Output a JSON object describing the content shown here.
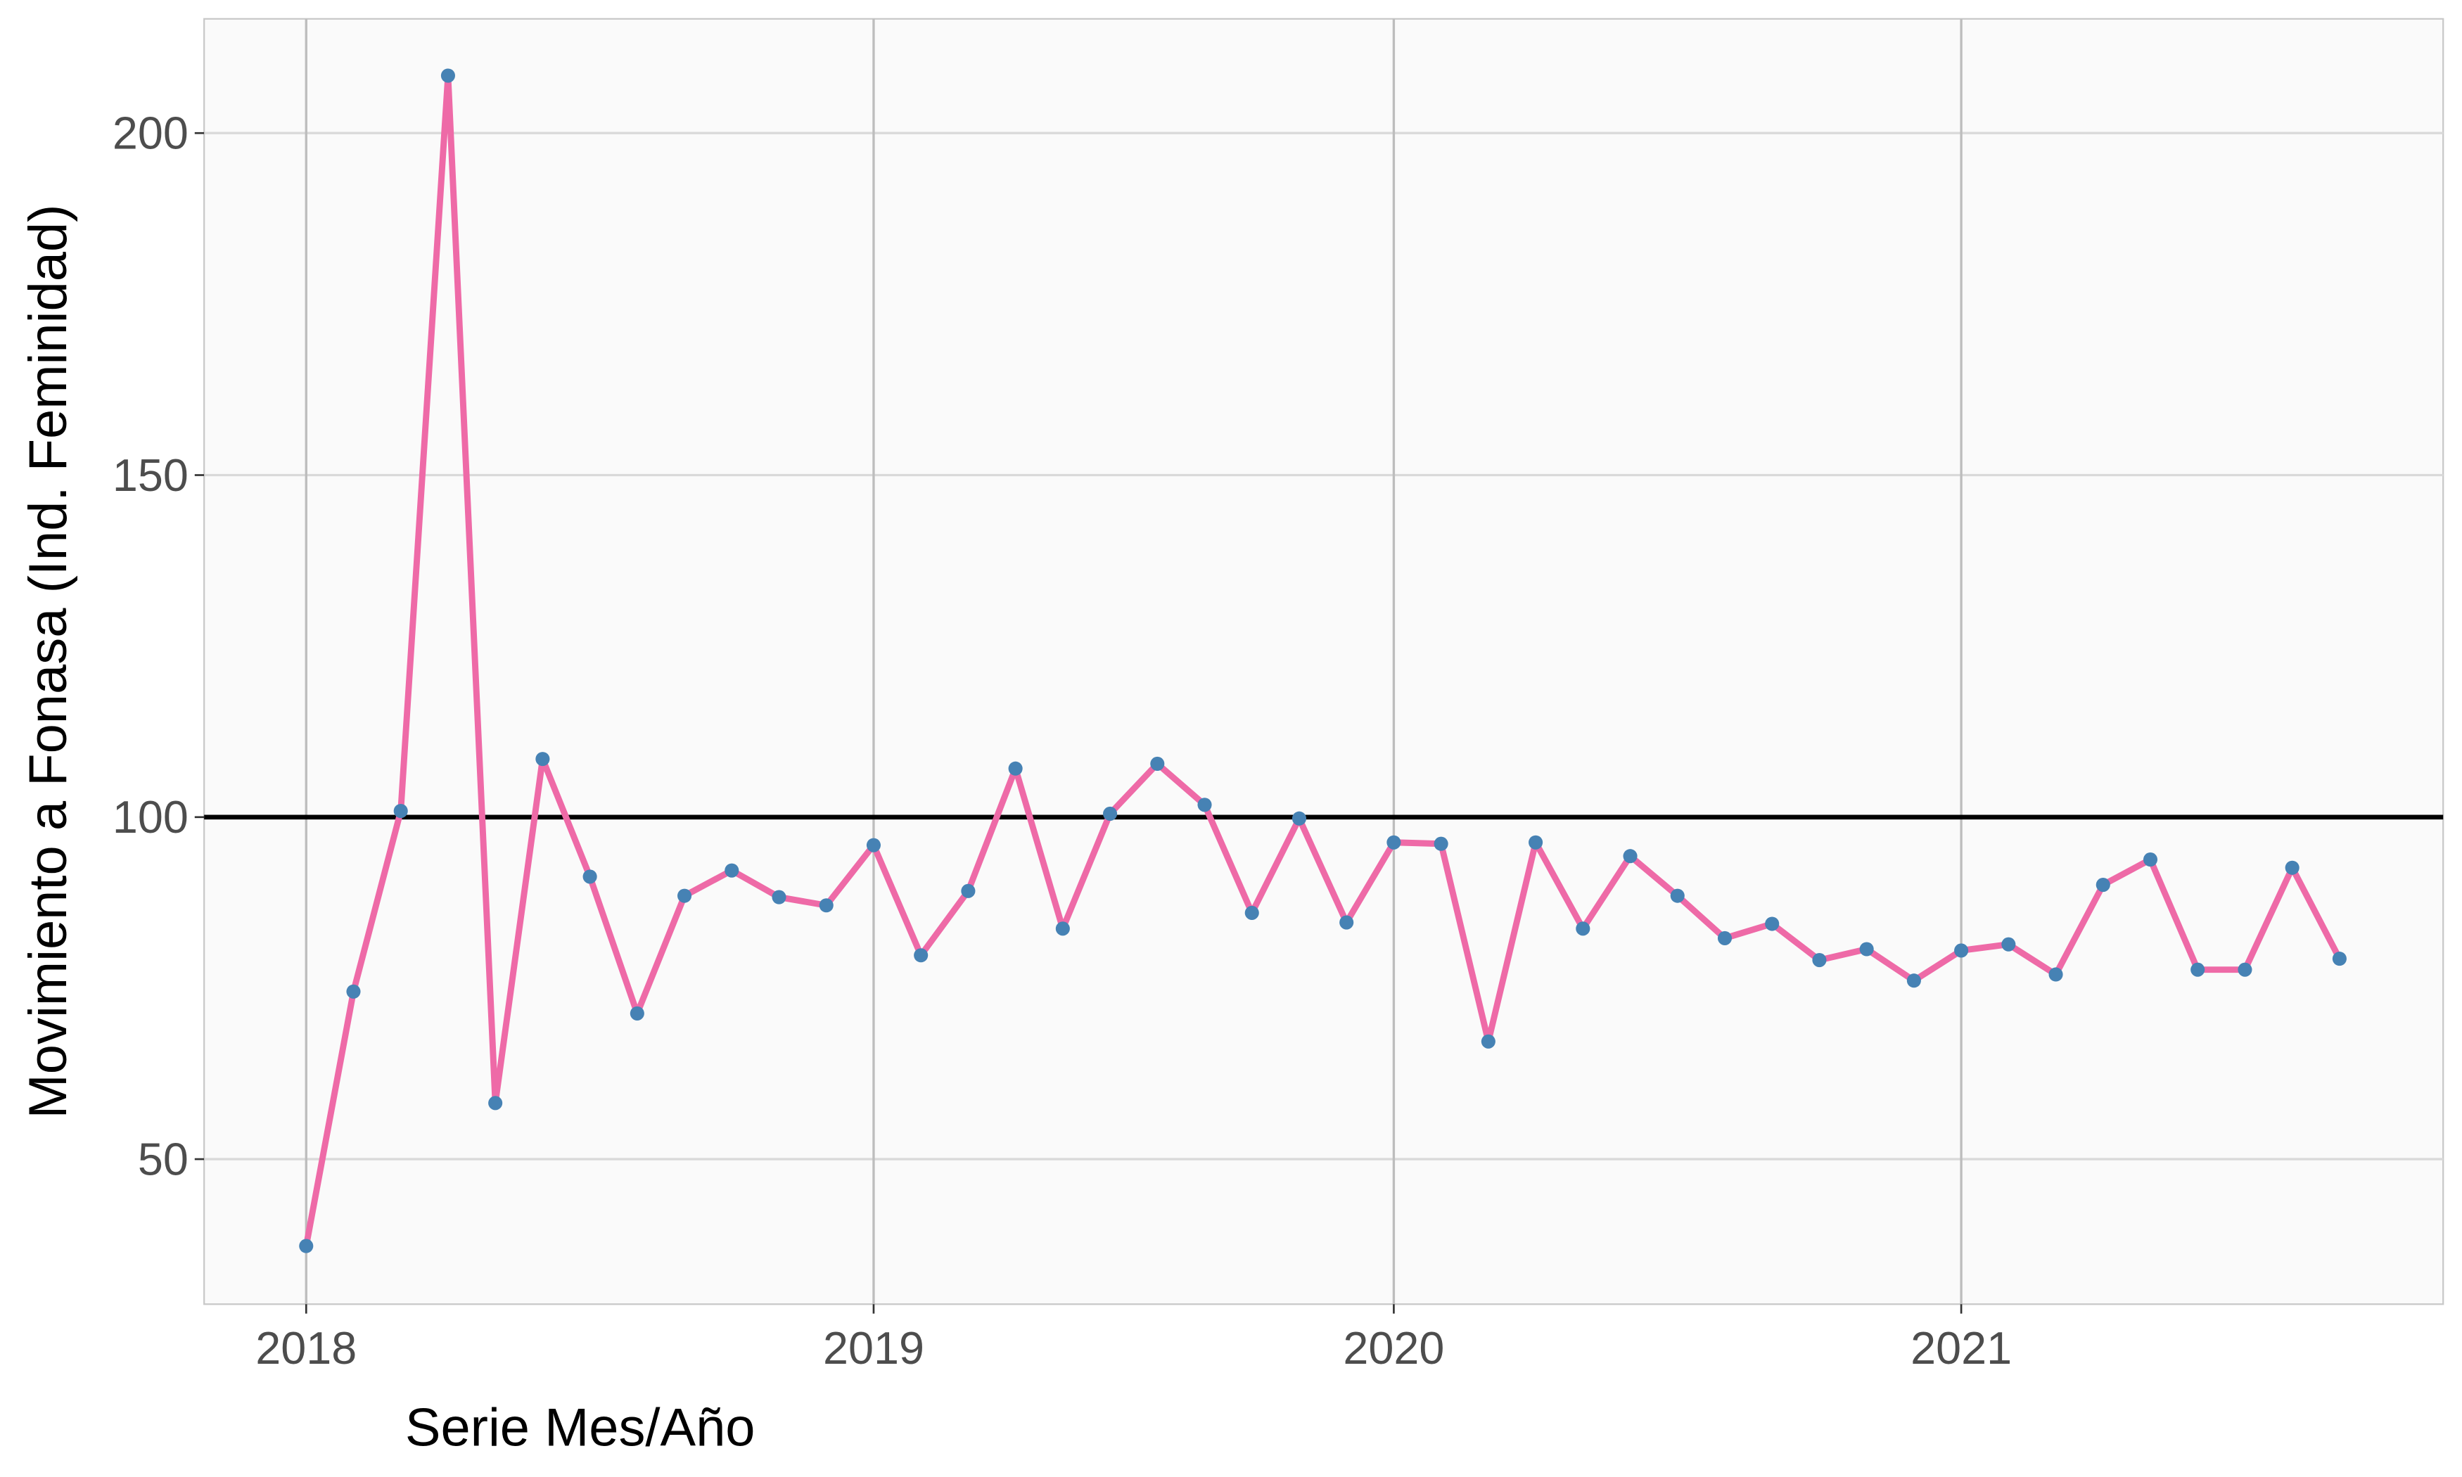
{
  "chart_data": {
    "type": "line",
    "x_label": "Serie Mes/Año",
    "y_label": "Movimiento a Fonasa (Ind. Feminidad)",
    "categories": [
      "2018",
      null,
      null,
      null,
      null,
      null,
      null,
      null,
      null,
      null,
      null,
      null,
      "2019",
      null,
      null,
      null,
      null,
      null,
      null,
      null,
      null,
      null,
      null,
      "2020",
      null,
      null,
      null,
      null,
      null,
      null,
      null,
      null,
      null,
      null,
      null,
      "2021",
      null,
      null,
      null,
      null,
      null,
      null,
      null,
      null
    ],
    "values": [
      37.3,
      74.5,
      100.9,
      208.4,
      58.2,
      108.5,
      91.3,
      71.3,
      88.5,
      92.2,
      88.3,
      87.1,
      95.9,
      79.8,
      89.2,
      107.1,
      83.7,
      100.5,
      107.8,
      101.8,
      86.0,
      99.8,
      84.6,
      96.3,
      96.1,
      67.2,
      96.3,
      83.7,
      94.3,
      88.5,
      82.3,
      84.4,
      79.1,
      80.7,
      76.1,
      80.5,
      81.4,
      77.0,
      90.1,
      93.8,
      77.7,
      77.7,
      92.6,
      79.3
    ],
    "line_color": "#ee6aa7",
    "point_color": "#4682b4",
    "ylim": [
      28.8,
      216.7
    ],
    "yticks": [
      50,
      100,
      150,
      200
    ],
    "hline": 100,
    "hline_color": "#000000",
    "grid": true
  }
}
